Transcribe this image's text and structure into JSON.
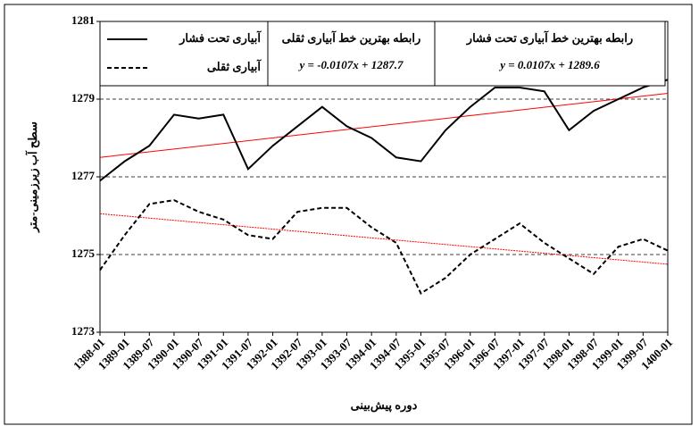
{
  "chart_data": {
    "type": "line",
    "x_label": "دوره پیش‌بینی",
    "y_label": "سطح آب زیرزمینی-متر",
    "categories": [
      "1388-01",
      "1389-01",
      "1389-07",
      "1390-01",
      "1390-07",
      "1391-01",
      "1391-07",
      "1392-01",
      "1392-07",
      "1393-01",
      "1393-07",
      "1394-01",
      "1394-07",
      "1395-01",
      "1395-07",
      "1396-01",
      "1396-07",
      "1397-01",
      "1397-07",
      "1398-01",
      "1398-07",
      "1399-01",
      "1399-07",
      "1400-01"
    ],
    "series": [
      {
        "name": "آبیاری تحت فشار",
        "color": "#000000",
        "dash": false,
        "values": [
          1276.9,
          1277.4,
          1277.8,
          1278.6,
          1278.5,
          1278.6,
          1277.2,
          1277.8,
          1278.3,
          1278.8,
          1278.3,
          1278.0,
          1277.5,
          1277.4,
          1278.2,
          1278.8,
          1279.3,
          1279.3,
          1279.2,
          1278.2,
          1278.7,
          1279.0,
          1279.3,
          1279.5
        ],
        "trend": [
          1277.5,
          1279.15
        ],
        "trend_color": "#ff0000"
      },
      {
        "name": "آبیاری ثقلی",
        "color": "#000000",
        "dash": true,
        "values": [
          1274.6,
          1275.5,
          1276.3,
          1276.4,
          1276.1,
          1275.9,
          1275.5,
          1275.4,
          1276.1,
          1276.2,
          1276.2,
          1275.7,
          1275.3,
          1274.0,
          1274.4,
          1275.0,
          1275.4,
          1275.8,
          1275.3,
          1274.9,
          1274.5,
          1275.2,
          1275.4,
          1275.1
        ],
        "trend": [
          1276.05,
          1274.75
        ],
        "trend_color": "#ff0000"
      }
    ],
    "annotations": [
      {
        "title": "رابطه بهترین خط آبیاری ثقلی",
        "equation": "y = -0.0107x + 1287.7"
      },
      {
        "title": "رابطه بهترین خط آبیاری تحت فشار",
        "equation": "y = 0.0107x + 1289.6"
      }
    ],
    "ylim": [
      1273,
      1281
    ],
    "yticks": [
      1273,
      1275,
      1277,
      1279,
      1281
    ],
    "grid": true
  }
}
